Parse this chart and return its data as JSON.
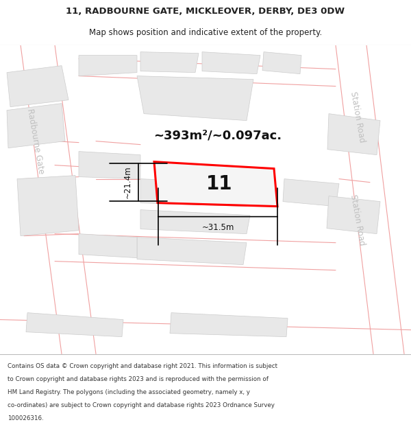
{
  "title_line1": "11, RADBOURNE GATE, MICKLEOVER, DERBY, DE3 0DW",
  "title_line2": "Map shows position and indicative extent of the property.",
  "footer_lines": [
    "Contains OS data © Crown copyright and database right 2021. This information is subject",
    "to Crown copyright and database rights 2023 and is reproduced with the permission of",
    "HM Land Registry. The polygons (including the associated geometry, namely x, y",
    "co-ordinates) are subject to Crown copyright and database rights 2023 Ordnance Survey",
    "100026316."
  ],
  "area_label": "~393m²/~0.097ac.",
  "number_label": "11",
  "dim_width": "~31.5m",
  "dim_height": "~21.4m",
  "map_bg": "#ffffff",
  "building_fill": "#e8e8e8",
  "building_edge": "#cccccc",
  "road_line_color": "#f0a0a0",
  "road_line_color2": "#d08080",
  "highlight_color": "#ff0000",
  "street_label_color": "#c0c0c0",
  "title_color": "#222222",
  "footer_color": "#333333",
  "fig_width": 6.0,
  "fig_height": 6.25,
  "dpi": 100
}
